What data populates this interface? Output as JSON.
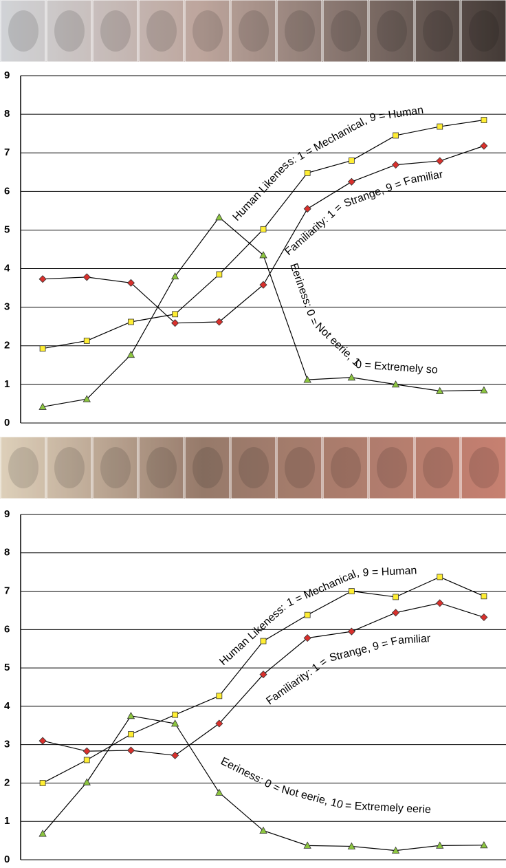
{
  "chart_data": [
    {
      "type": "line",
      "categories": [
        null,
        null,
        null,
        null,
        null,
        null,
        null,
        null,
        null,
        null,
        null
      ],
      "ylim": [
        0,
        9
      ],
      "yticks": [
        0,
        1,
        2,
        3,
        4,
        5,
        6,
        7,
        8,
        9
      ],
      "grid": true,
      "line_color": "#000000",
      "series": [
        {
          "name": "Human Likeness: 1 = Mechanical, 9 = Human",
          "color": "#ffee33",
          "marker": "square",
          "values": [
            1.93,
            2.13,
            2.62,
            2.82,
            3.85,
            5.02,
            6.48,
            6.8,
            7.45,
            7.68,
            7.85
          ]
        },
        {
          "name": "Familiarity: 1 = Strange, 9 = Familiar",
          "color": "#d9302c",
          "marker": "diamond",
          "values": [
            3.73,
            3.78,
            3.63,
            2.59,
            2.62,
            3.58,
            5.55,
            6.25,
            6.69,
            6.79,
            7.18
          ]
        },
        {
          "name": "Eeriness: 0 = Not eerie, 10 = Extremely so",
          "color": "#8cc63f",
          "marker": "triangle",
          "values": [
            0.42,
            0.62,
            1.77,
            3.8,
            5.33,
            4.35,
            1.12,
            1.18,
            1.0,
            0.83,
            0.85
          ]
        }
      ]
    },
    {
      "type": "line",
      "categories": [
        null,
        null,
        null,
        null,
        null,
        null,
        null,
        null,
        null,
        null,
        null
      ],
      "ylim": [
        0,
        9
      ],
      "yticks": [
        0,
        1,
        2,
        3,
        4,
        5,
        6,
        7,
        8,
        9
      ],
      "grid": true,
      "line_color": "#000000",
      "series": [
        {
          "name": "Human Likeness: 1 = Mechanical, 9 = Human",
          "color": "#ffee33",
          "marker": "square",
          "values": [
            2.0,
            2.6,
            3.27,
            3.78,
            4.27,
            5.7,
            6.38,
            7.0,
            6.85,
            7.37,
            6.87
          ]
        },
        {
          "name": "Familiarity: 1 = Strange, 9 = Familiar",
          "color": "#d9302c",
          "marker": "diamond",
          "values": [
            3.1,
            2.83,
            2.85,
            2.72,
            3.55,
            4.83,
            5.78,
            5.95,
            6.44,
            6.69,
            6.32
          ]
        },
        {
          "name": "Eeriness: 0 = Not eerie, 10 = Extremely eerie",
          "color": "#8cc63f",
          "marker": "triangle",
          "values": [
            0.68,
            2.02,
            3.75,
            3.55,
            1.75,
            0.76,
            0.37,
            0.35,
            0.24,
            0.37,
            0.38
          ]
        }
      ]
    }
  ]
}
